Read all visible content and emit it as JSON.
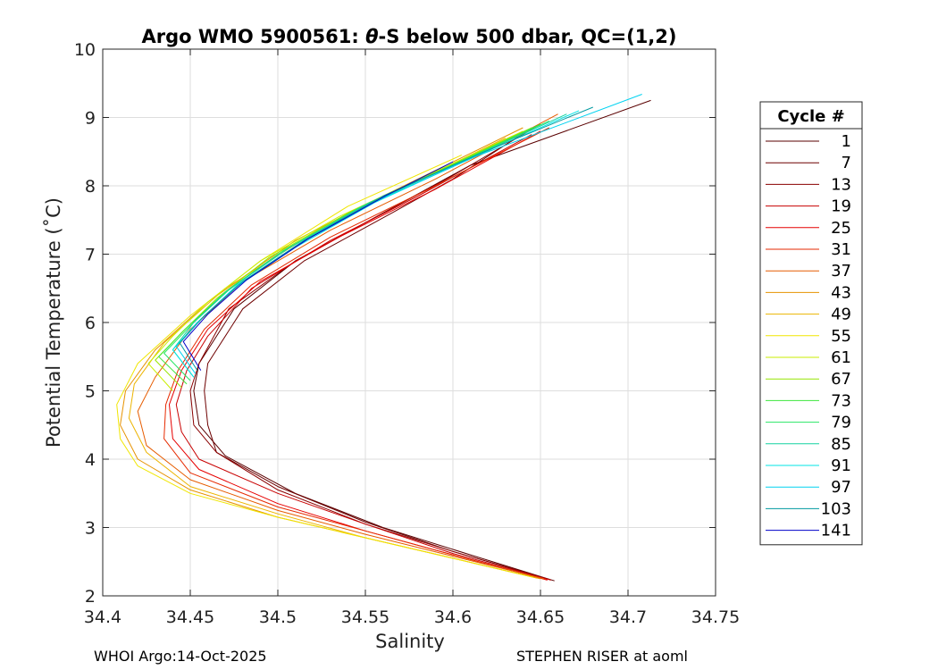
{
  "chart_data": {
    "type": "line",
    "title_prefix": "Argo WMO 5900561: ",
    "title_theta": "θ",
    "title_suffix": "-S below 500 dbar,  QC=(1,2)",
    "xlabel": "Salinity",
    "ylabel": "Potential Temperature (˚C)",
    "xlim": [
      34.4,
      34.75
    ],
    "ylim": [
      2,
      10
    ],
    "xticks": [
      "34.4",
      "34.45",
      "34.5",
      "34.55",
      "34.6",
      "34.65",
      "34.7",
      "34.75"
    ],
    "yticks": [
      "2",
      "3",
      "4",
      "5",
      "6",
      "7",
      "8",
      "9",
      "10"
    ],
    "grid": true,
    "legend": {
      "title": "Cycle #",
      "position": "right",
      "entries": [
        {
          "label": "1",
          "color": "#5a0000"
        },
        {
          "label": "7",
          "color": "#6e0000"
        },
        {
          "label": "13",
          "color": "#8a0000"
        },
        {
          "label": "19",
          "color": "#c80000"
        },
        {
          "label": "25",
          "color": "#e60000"
        },
        {
          "label": "31",
          "color": "#e62a00"
        },
        {
          "label": "37",
          "color": "#e65c00"
        },
        {
          "label": "43",
          "color": "#e69200"
        },
        {
          "label": "49",
          "color": "#ecb400"
        },
        {
          "label": "55",
          "color": "#f0e600"
        },
        {
          "label": "61",
          "color": "#c8ee00"
        },
        {
          "label": "67",
          "color": "#96e600"
        },
        {
          "label": "73",
          "color": "#3ce63c"
        },
        {
          "label": "79",
          "color": "#28e664"
        },
        {
          "label": "85",
          "color": "#14d2a0"
        },
        {
          "label": "91",
          "color": "#00e6e6"
        },
        {
          "label": "97",
          "color": "#00d2f0"
        },
        {
          "label": "103",
          "color": "#009aa0"
        },
        {
          "label": "141",
          "color": "#0000c8"
        }
      ]
    },
    "series": [
      {
        "name": "1",
        "color": "#5a0000",
        "points": [
          [
            34.658,
            2.22
          ],
          [
            34.61,
            2.6
          ],
          [
            34.56,
            3.0
          ],
          [
            34.51,
            3.5
          ],
          [
            34.47,
            4.05
          ],
          [
            34.455,
            4.5
          ],
          [
            34.452,
            5.0
          ],
          [
            34.455,
            5.4
          ],
          [
            34.475,
            6.2
          ],
          [
            34.51,
            6.9
          ],
          [
            34.56,
            7.6
          ],
          [
            34.61,
            8.3
          ],
          [
            34.713,
            9.25
          ]
        ]
      },
      {
        "name": "7",
        "color": "#6e0000",
        "points": [
          [
            34.655,
            2.24
          ],
          [
            34.6,
            2.65
          ],
          [
            34.55,
            3.08
          ],
          [
            34.5,
            3.6
          ],
          [
            34.465,
            4.1
          ],
          [
            34.46,
            4.5
          ],
          [
            34.458,
            5.0
          ],
          [
            34.46,
            5.4
          ],
          [
            34.48,
            6.2
          ],
          [
            34.515,
            6.9
          ],
          [
            34.565,
            7.6
          ],
          [
            34.6,
            8.1
          ],
          [
            34.645,
            8.85
          ]
        ]
      },
      {
        "name": "13",
        "color": "#8a0000",
        "points": [
          [
            34.655,
            2.24
          ],
          [
            34.6,
            2.65
          ],
          [
            34.55,
            3.05
          ],
          [
            34.5,
            3.55
          ],
          [
            34.465,
            4.1
          ],
          [
            34.452,
            4.5
          ],
          [
            34.45,
            5.0
          ],
          [
            34.455,
            5.4
          ],
          [
            34.472,
            6.2
          ],
          [
            34.51,
            6.9
          ],
          [
            34.56,
            7.6
          ],
          [
            34.6,
            8.15
          ],
          [
            34.65,
            8.9
          ]
        ]
      },
      {
        "name": "19",
        "color": "#c80000",
        "points": [
          [
            34.656,
            2.23
          ],
          [
            34.6,
            2.62
          ],
          [
            34.55,
            3.05
          ],
          [
            34.5,
            3.5
          ],
          [
            34.455,
            4.0
          ],
          [
            34.445,
            4.4
          ],
          [
            34.442,
            4.8
          ],
          [
            34.448,
            5.3
          ],
          [
            34.46,
            5.8
          ],
          [
            34.485,
            6.5
          ],
          [
            34.53,
            7.2
          ],
          [
            34.58,
            7.85
          ],
          [
            34.645,
            8.75
          ]
        ]
      },
      {
        "name": "25",
        "color": "#e60000",
        "points": [
          [
            34.654,
            2.23
          ],
          [
            34.6,
            2.6
          ],
          [
            34.55,
            2.95
          ],
          [
            34.5,
            3.35
          ],
          [
            34.455,
            3.85
          ],
          [
            34.44,
            4.3
          ],
          [
            34.438,
            4.8
          ],
          [
            34.445,
            5.3
          ],
          [
            34.46,
            5.9
          ],
          [
            34.49,
            6.6
          ],
          [
            34.535,
            7.25
          ],
          [
            34.59,
            7.95
          ],
          [
            34.65,
            8.8
          ]
        ]
      },
      {
        "name": "31",
        "color": "#e62a00",
        "points": [
          [
            34.653,
            2.24
          ],
          [
            34.6,
            2.6
          ],
          [
            34.55,
            2.95
          ],
          [
            34.5,
            3.3
          ],
          [
            34.45,
            3.8
          ],
          [
            34.435,
            4.3
          ],
          [
            34.436,
            4.8
          ],
          [
            34.443,
            5.3
          ],
          [
            34.458,
            5.9
          ],
          [
            34.485,
            6.55
          ],
          [
            34.53,
            7.25
          ],
          [
            34.59,
            8.0
          ],
          [
            34.655,
            8.85
          ]
        ]
      },
      {
        "name": "37",
        "color": "#e65c00",
        "points": [
          [
            34.652,
            2.25
          ],
          [
            34.6,
            2.58
          ],
          [
            34.55,
            2.9
          ],
          [
            34.5,
            3.25
          ],
          [
            34.45,
            3.7
          ],
          [
            34.425,
            4.2
          ],
          [
            34.42,
            4.7
          ],
          [
            34.43,
            5.2
          ],
          [
            34.45,
            5.9
          ],
          [
            34.48,
            6.6
          ],
          [
            34.53,
            7.35
          ],
          [
            34.59,
            8.1
          ],
          [
            34.66,
            9.05
          ]
        ]
      },
      {
        "name": "43",
        "color": "#e69200",
        "points": [
          [
            34.65,
            2.25
          ],
          [
            34.6,
            2.55
          ],
          [
            34.55,
            2.85
          ],
          [
            34.5,
            3.15
          ],
          [
            34.45,
            3.55
          ],
          [
            34.42,
            4.0
          ],
          [
            34.41,
            4.5
          ],
          [
            34.413,
            5.0
          ],
          [
            34.43,
            5.6
          ],
          [
            34.46,
            6.3
          ],
          [
            34.51,
            7.2
          ],
          [
            34.56,
            7.85
          ],
          [
            34.64,
            8.85
          ]
        ]
      },
      {
        "name": "49",
        "color": "#ecb400",
        "points": [
          [
            34.648,
            2.26
          ],
          [
            34.6,
            2.55
          ],
          [
            34.55,
            2.85
          ],
          [
            34.5,
            3.2
          ],
          [
            34.45,
            3.6
          ],
          [
            34.425,
            4.1
          ],
          [
            34.415,
            4.6
          ],
          [
            34.418,
            5.1
          ],
          [
            34.435,
            5.7
          ],
          [
            34.47,
            6.5
          ],
          [
            34.52,
            7.3
          ],
          [
            34.57,
            7.95
          ],
          [
            34.63,
            8.7
          ]
        ]
      },
      {
        "name": "55",
        "color": "#f0e600",
        "points": [
          [
            34.646,
            2.27
          ],
          [
            34.6,
            2.55
          ],
          [
            34.55,
            2.85
          ],
          [
            34.5,
            3.15
          ],
          [
            34.45,
            3.5
          ],
          [
            34.42,
            3.9
          ],
          [
            34.41,
            4.3
          ],
          [
            34.408,
            4.8
          ],
          [
            34.42,
            5.4
          ],
          [
            34.45,
            6.1
          ],
          [
            34.49,
            6.9
          ],
          [
            34.54,
            7.7
          ],
          [
            34.605,
            8.45
          ]
        ]
      },
      {
        "name": "61",
        "color": "#c8ee00",
        "points": [
          [
            34.44,
            5.0
          ],
          [
            34.426,
            5.4
          ],
          [
            34.44,
            5.8
          ],
          [
            34.46,
            6.3
          ],
          [
            34.49,
            6.9
          ],
          [
            34.535,
            7.55
          ],
          [
            34.585,
            8.15
          ],
          [
            34.64,
            8.8
          ]
        ]
      },
      {
        "name": "67",
        "color": "#96e600",
        "points": [
          [
            34.445,
            5.05
          ],
          [
            34.43,
            5.45
          ],
          [
            34.445,
            5.85
          ],
          [
            34.465,
            6.35
          ],
          [
            34.495,
            6.95
          ],
          [
            34.54,
            7.6
          ],
          [
            34.59,
            8.2
          ],
          [
            34.645,
            8.85
          ]
        ]
      },
      {
        "name": "73",
        "color": "#3ce63c",
        "points": [
          [
            34.448,
            5.1
          ],
          [
            34.432,
            5.5
          ],
          [
            34.447,
            5.9
          ],
          [
            34.468,
            6.4
          ],
          [
            34.5,
            7.0
          ],
          [
            34.545,
            7.65
          ],
          [
            34.595,
            8.25
          ],
          [
            34.65,
            8.9
          ]
        ]
      },
      {
        "name": "79",
        "color": "#28e664",
        "points": [
          [
            34.45,
            5.15
          ],
          [
            34.435,
            5.55
          ],
          [
            34.45,
            5.95
          ],
          [
            34.47,
            6.45
          ],
          [
            34.503,
            7.05
          ],
          [
            34.548,
            7.7
          ],
          [
            34.6,
            8.3
          ],
          [
            34.655,
            8.95
          ]
        ]
      },
      {
        "name": "85",
        "color": "#14d2a0",
        "points": [
          [
            34.452,
            5.2
          ],
          [
            34.44,
            5.6
          ],
          [
            34.452,
            6.0
          ],
          [
            34.473,
            6.5
          ],
          [
            34.507,
            7.1
          ],
          [
            34.552,
            7.75
          ],
          [
            34.605,
            8.35
          ],
          [
            34.665,
            9.05
          ]
        ]
      },
      {
        "name": "91",
        "color": "#00e6e6",
        "points": [
          [
            34.452,
            5.2
          ],
          [
            34.44,
            5.6
          ],
          [
            34.454,
            6.0
          ],
          [
            34.475,
            6.5
          ],
          [
            34.51,
            7.1
          ],
          [
            34.555,
            7.75
          ],
          [
            34.61,
            8.4
          ],
          [
            34.672,
            9.1
          ]
        ]
      },
      {
        "name": "97",
        "color": "#00d2f0",
        "points": [
          [
            34.453,
            5.25
          ],
          [
            34.442,
            5.65
          ],
          [
            34.456,
            6.05
          ],
          [
            34.477,
            6.55
          ],
          [
            34.512,
            7.15
          ],
          [
            34.558,
            7.8
          ],
          [
            34.615,
            8.45
          ],
          [
            34.708,
            9.34
          ]
        ]
      },
      {
        "name": "103",
        "color": "#009aa0",
        "points": [
          [
            34.454,
            5.3
          ],
          [
            34.444,
            5.7
          ],
          [
            34.458,
            6.1
          ],
          [
            34.48,
            6.6
          ],
          [
            34.515,
            7.2
          ],
          [
            34.56,
            7.85
          ],
          [
            34.618,
            8.5
          ],
          [
            34.68,
            9.15
          ]
        ]
      },
      {
        "name": "141",
        "color": "#0000c8",
        "points": [
          [
            34.456,
            5.3
          ],
          [
            34.446,
            5.72
          ],
          [
            34.46,
            6.12
          ],
          [
            34.482,
            6.62
          ],
          [
            34.517,
            7.22
          ],
          [
            34.562,
            7.86
          ],
          [
            34.6,
            8.35
          ]
        ]
      }
    ]
  },
  "footer": {
    "left": "WHOI Argo:14-Oct-2025",
    "right": "STEPHEN RISER at aoml"
  }
}
